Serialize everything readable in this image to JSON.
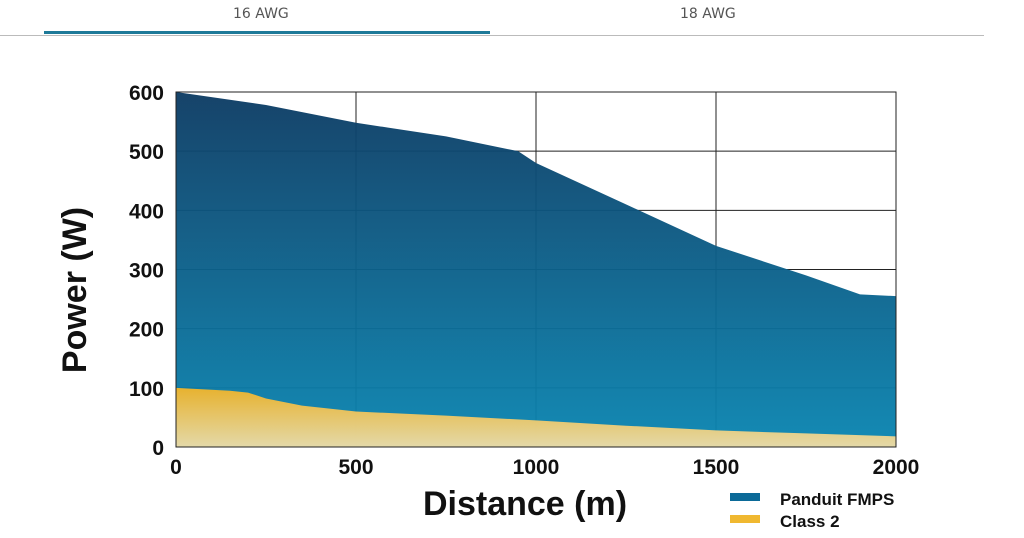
{
  "tabs": [
    {
      "label": "16 AWG",
      "active": true
    },
    {
      "label": "18 AWG",
      "active": false
    }
  ],
  "accent_color": "#1e7a99",
  "chart_data": {
    "type": "area",
    "title": "",
    "xlabel": "Distance (m)",
    "ylabel": "Power (W)",
    "xlim": [
      0,
      2000
    ],
    "ylim": [
      0,
      600
    ],
    "xticks": [
      "0",
      "500",
      "1000",
      "1500",
      "2000"
    ],
    "yticks": [
      "0",
      "100",
      "200",
      "300",
      "400",
      "500",
      "600"
    ],
    "grid": true,
    "legend": "bottom-right",
    "series": [
      {
        "name": "Panduit FMPS",
        "color": "#0b6a98",
        "x": [
          0,
          250,
          500,
          750,
          950,
          1000,
          1250,
          1500,
          1750,
          1900,
          2000
        ],
        "values": [
          600,
          578,
          548,
          525,
          500,
          480,
          410,
          340,
          290,
          258,
          255
        ]
      },
      {
        "name": "Class 2",
        "color": "#f0b830",
        "x": [
          0,
          150,
          200,
          250,
          350,
          500,
          750,
          1000,
          1250,
          1500,
          1750,
          2000
        ],
        "values": [
          100,
          95,
          92,
          82,
          70,
          60,
          53,
          45,
          36,
          28,
          23,
          18
        ]
      }
    ]
  }
}
